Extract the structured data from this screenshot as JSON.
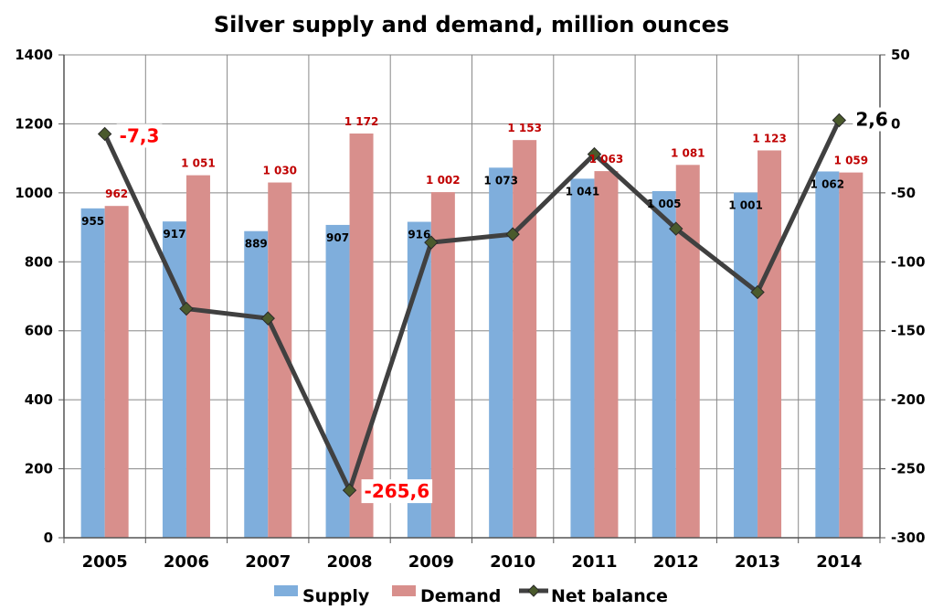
{
  "chart_data": {
    "type": "bar",
    "title": "Silver supply and demand, million ounces",
    "categories": [
      "2005",
      "2006",
      "2007",
      "2008",
      "2009",
      "2010",
      "2011",
      "2012",
      "2013",
      "2014"
    ],
    "series": [
      {
        "name": "Supply",
        "kind": "bar",
        "axis": "left",
        "color": "#7faedc",
        "values": [
          955,
          917,
          889,
          907,
          916,
          1073,
          1041,
          1005,
          1001,
          1062
        ],
        "labels": [
          "955",
          "917",
          "889",
          "907",
          "916",
          "1 073",
          "1 041",
          "1 005",
          "1 001",
          "1 062"
        ]
      },
      {
        "name": "Demand",
        "kind": "bar",
        "axis": "left",
        "color": "#d88f8c",
        "values": [
          962,
          1051,
          1030,
          1172,
          1002,
          1153,
          1063,
          1081,
          1123,
          1059
        ],
        "labels": [
          "962",
          "1 051",
          "1 030",
          "1 172",
          "1 002",
          "1 153",
          "1 063",
          "1 081",
          "1 123",
          "1 059"
        ]
      },
      {
        "name": "Net balance",
        "kind": "line",
        "axis": "right",
        "color": "#404040",
        "values": [
          -7.3,
          -134,
          -141,
          -265.6,
          -86,
          -80,
          -22,
          -76,
          -122,
          2.6
        ],
        "point_labels": [
          {
            "index": 0,
            "text": "-7,3",
            "color": "#ff0000"
          },
          {
            "index": 3,
            "text": "-265,6",
            "color": "#ff0000"
          },
          {
            "index": 9,
            "text": "2,6",
            "color": "#000000"
          }
        ]
      }
    ],
    "y_left": {
      "min": 0,
      "max": 1400,
      "ticks": [
        "0",
        "200",
        "400",
        "600",
        "800",
        "1000",
        "1200",
        "1400"
      ]
    },
    "y_right": {
      "min": -300,
      "max": 50,
      "ticks": [
        "-300",
        "-250",
        "-200",
        "-150",
        "-100",
        "-50",
        "0",
        "50"
      ]
    },
    "grid": true,
    "legend": "bottom"
  }
}
